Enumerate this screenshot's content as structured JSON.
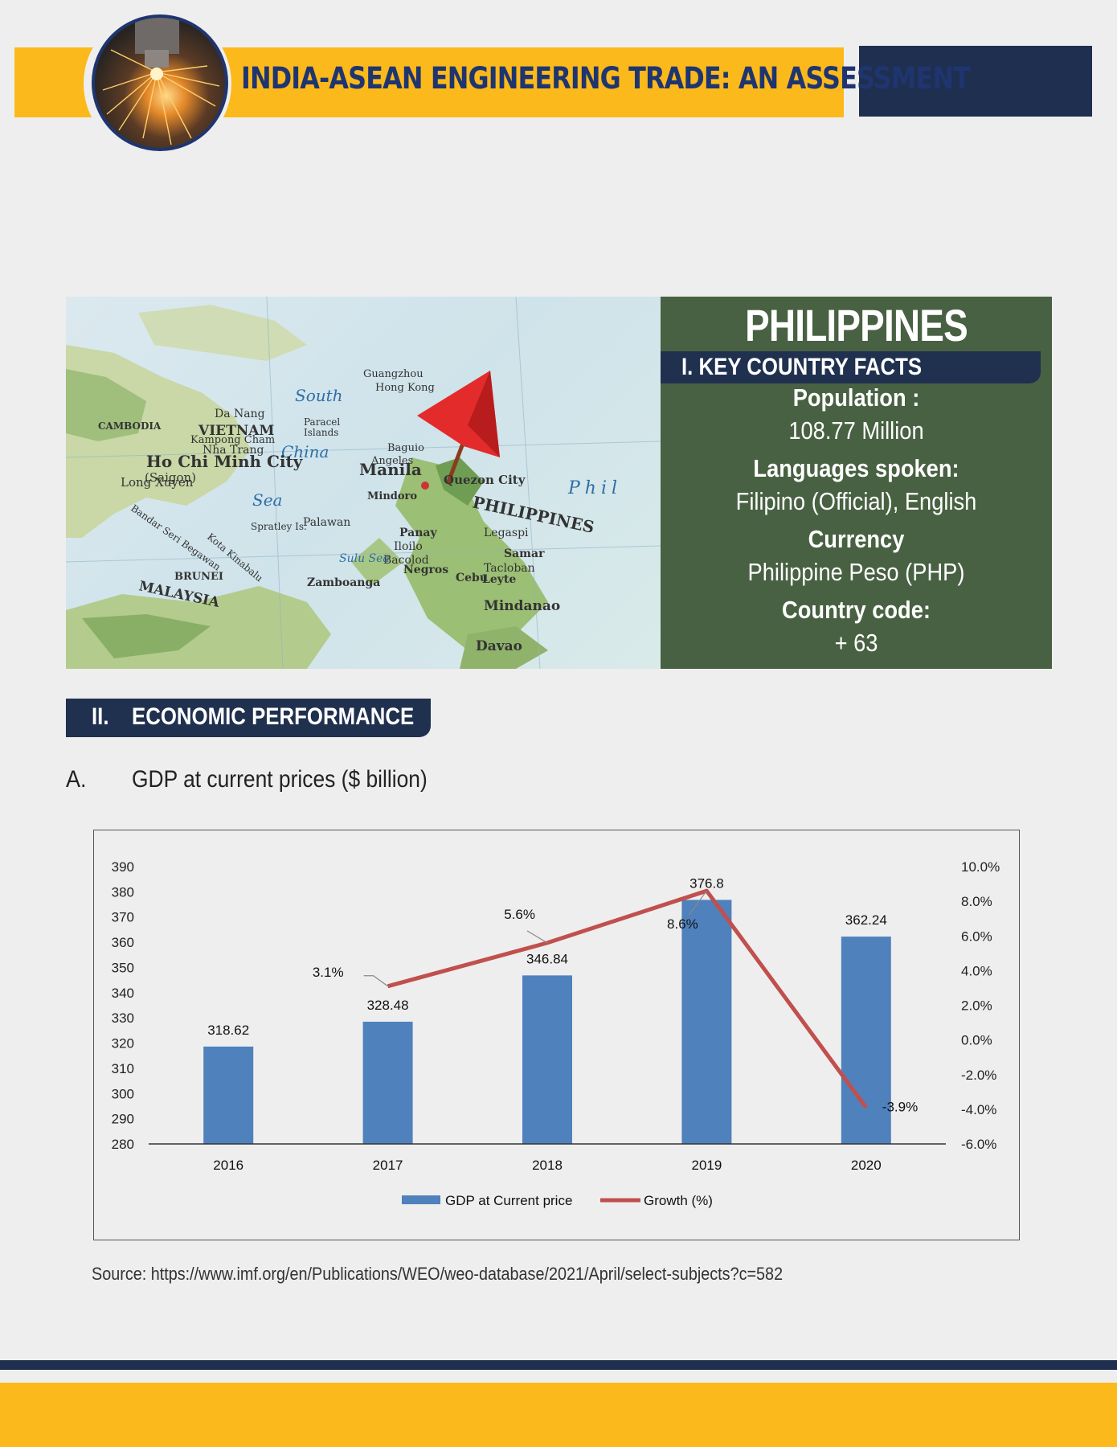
{
  "header": {
    "title": "INDIA-ASEAN ENGINEERING TRADE: AN ASSESSMENT"
  },
  "map": {
    "labels": [
      "Guangzhou",
      "Hong Kong",
      "South",
      "China",
      "Sea",
      "Paracel Islands",
      "Da Nang",
      "VIETNAM",
      "CAMBODIA",
      "Ho Chi Minh City",
      "(Saigon)",
      "Long Xuyen",
      "Nha Trang",
      "Kampong Cham",
      "Manila",
      "Quezon City",
      "PHILIPPINES",
      "Mindoro",
      "Palawan",
      "Spratley Is.",
      "Panay",
      "Iloilo",
      "Bacolod",
      "Negros",
      "Cebu",
      "Tacloban",
      "Leyte",
      "Samar",
      "Legaspi",
      "Mindanao",
      "Davao",
      "Zamboanga",
      "Sulu Sea",
      "MALAYSIA",
      "BRUNEI",
      "Kota Kinabalu",
      "Bandar Seri Begawan",
      "Baguio",
      "Angeles",
      "Phil"
    ]
  },
  "facts": {
    "country": "PHILIPPINES",
    "heading": "I. KEY COUNTRY FACTS",
    "population_label": "Population :",
    "population_value": "108.77 Million",
    "languages_label": "Languages spoken:",
    "languages_value": "Filipino (Official), English",
    "currency_label": "Currency",
    "currency_value": "Philippine Peso (PHP)",
    "code_label": "Country code:",
    "code_value": "+ 63"
  },
  "section2": {
    "number": "II.",
    "title": "ECONOMIC PERFORMANCE"
  },
  "subsectionA": {
    "letter": "A.",
    "title": "GDP at current prices ($ billion)"
  },
  "chart_data": {
    "type": "bar",
    "categories": [
      "2016",
      "2017",
      "2018",
      "2019",
      "2020"
    ],
    "series": [
      {
        "name": "GDP at Current price",
        "type": "bar",
        "axis": "left",
        "values": [
          318.62,
          328.48,
          346.84,
          376.8,
          362.24
        ],
        "labels": [
          "318.62",
          "328.48",
          "346.84",
          "376.8",
          "362.24"
        ],
        "color": "#4f81bd"
      },
      {
        "name": "Growth (%)",
        "type": "line",
        "axis": "right",
        "x": [
          "2017",
          "2018",
          "2019",
          "2020"
        ],
        "values": [
          3.1,
          5.6,
          8.6,
          -3.9
        ],
        "labels": [
          "3.1%",
          "5.6%",
          "8.6%",
          "-3.9%"
        ],
        "color": "#c0504d"
      }
    ],
    "y_left": {
      "ylim": [
        280,
        390
      ],
      "ticks": [
        "390",
        "380",
        "370",
        "360",
        "350",
        "340",
        "330",
        "320",
        "310",
        "300",
        "290",
        "280"
      ]
    },
    "y_right": {
      "ylim": [
        -6,
        10
      ],
      "ticks": [
        "10.0%",
        "8.0%",
        "6.0%",
        "4.0%",
        "2.0%",
        "0.0%",
        "-2.0%",
        "-4.0%",
        "-6.0%"
      ]
    },
    "legend_position": "bottom"
  },
  "source": "Source: https://www.imf.org/en/Publications/WEO/weo-database/2021/April/select-subjects?c=582"
}
